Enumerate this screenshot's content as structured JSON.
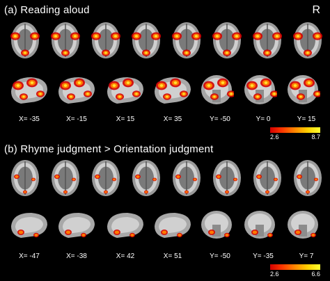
{
  "panel_a": {
    "label": "(a)",
    "title": "Reading aloud",
    "orientation_marker": "R",
    "coords": [
      "X= -35",
      "X= -15",
      "X= 15",
      "X= 35",
      "Y= -50",
      "Y= 0",
      "Y= 15"
    ],
    "colorbar": {
      "min": "2.6",
      "max": "8.7"
    }
  },
  "panel_b": {
    "label": "(b)",
    "title": "Rhyme judgment > Orientation judgment",
    "coords": [
      "X= -47",
      "X= -38",
      "X= 42",
      "X= 51",
      "Y= -50",
      "Y= -35",
      "Y= 7"
    ],
    "colorbar": {
      "min": "2.6",
      "max": "6.6"
    }
  },
  "colors": {
    "background": "#000000",
    "activation_low": "#d40000",
    "activation_mid": "#ff8800",
    "activation_high": "#ffff30",
    "brain_gray": "#bdbdbd"
  }
}
